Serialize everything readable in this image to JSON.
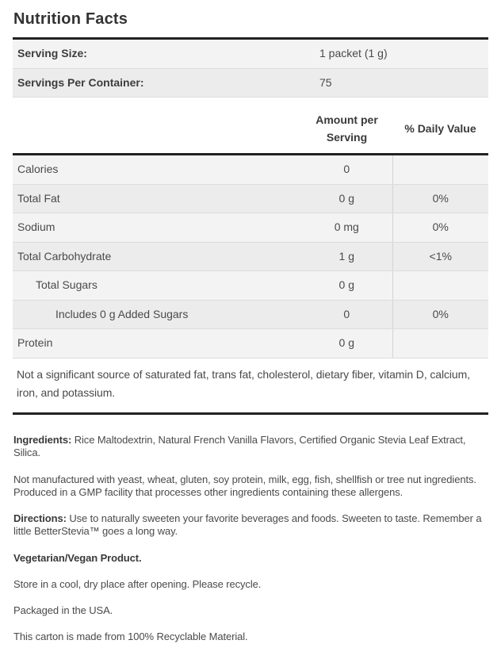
{
  "title": "Nutrition Facts",
  "serving_info": {
    "rows": [
      {
        "label": "Serving Size:",
        "value": "1 packet (1 g)"
      },
      {
        "label": "Servings Per Container:",
        "value": "75"
      }
    ]
  },
  "nutrition_table": {
    "headers": {
      "amount": "Amount per Serving",
      "daily_value": "% Daily Value"
    },
    "rows": [
      {
        "name": "Calories",
        "amount": "0",
        "dv": "",
        "indent": 0
      },
      {
        "name": "Total Fat",
        "amount": "0 g",
        "dv": "0%",
        "indent": 0
      },
      {
        "name": "Sodium",
        "amount": "0 mg",
        "dv": "0%",
        "indent": 0
      },
      {
        "name": "Total Carbohydrate",
        "amount": "1 g",
        "dv": "<1%",
        "indent": 0
      },
      {
        "name": "Total Sugars",
        "amount": "0 g",
        "dv": "",
        "indent": 1
      },
      {
        "name": "Includes 0 g Added Sugars",
        "amount": "0",
        "dv": "0%",
        "indent": 2
      },
      {
        "name": "Protein",
        "amount": "0 g",
        "dv": "",
        "indent": 0
      }
    ],
    "footnote": "Not a significant source of saturated fat, trans fat, cholesterol, dietary fiber, vitamin D, calcium, iron, and potassium."
  },
  "details": {
    "paragraphs": [
      {
        "lead": "Ingredients:",
        "text": "Rice Maltodextrin, Natural French Vanilla Flavors, Certified Organic Stevia Leaf Extract, Silica."
      },
      {
        "lead": "",
        "text": "Not manufactured with yeast, wheat, gluten, soy protein, milk, egg, fish, shellfish or tree nut ingredients. Produced in a GMP facility that processes other ingredients containing these allergens."
      },
      {
        "lead": "Directions:",
        "text": "Use to naturally sweeten your favorite beverages and foods. Sweeten to taste. Remember a little BetterStevia™ goes a long way."
      },
      {
        "lead": "Vegetarian/Vegan Product.",
        "text": ""
      },
      {
        "lead": "",
        "text": "Store in a cool, dry place after opening. Please recycle."
      },
      {
        "lead": "",
        "text": "Packaged in the USA."
      },
      {
        "lead": "",
        "text": "This carton is made from 100% Recyclable Material."
      }
    ]
  },
  "colors": {
    "heavy_rule": "#222222",
    "row_light": "#f3f3f3",
    "row_dark": "#ececec",
    "light_rule": "#dcdcdc",
    "text": "#4a4a4a"
  }
}
